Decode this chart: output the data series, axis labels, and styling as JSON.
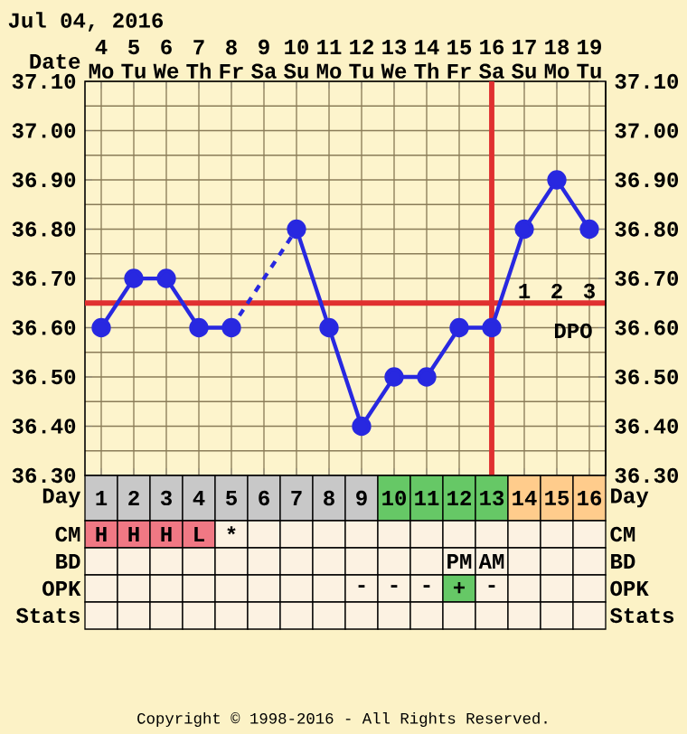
{
  "chart_data": {
    "type": "line",
    "title": "Jul 04, 2016",
    "xlabel": "Date",
    "categories": [
      "4 Mo",
      "5 Tu",
      "6 We",
      "7 Th",
      "8 Fr",
      "9 Sa",
      "10 Su",
      "11 Mo",
      "12 Tu",
      "13 We",
      "14 Th",
      "15 Fr",
      "16 Sa",
      "17 Su",
      "18 Mo",
      "19 Tu"
    ],
    "series": [
      {
        "color": "#2828e0",
        "values": [
          36.6,
          36.7,
          36.7,
          36.6,
          36.6,
          null,
          36.8,
          36.6,
          36.4,
          36.5,
          36.5,
          36.6,
          36.6,
          36.8,
          36.9,
          36.8
        ]
      }
    ],
    "marker": "circle",
    "grid": true,
    "ylim": [
      36.3,
      37.1
    ],
    "yticks": [
      {
        "value": 36.3,
        "label": "36.30"
      },
      {
        "value": 36.4,
        "label": "36.40"
      },
      {
        "value": 36.5,
        "label": "36.50"
      },
      {
        "value": 36.6,
        "label": "36.60"
      },
      {
        "value": 36.7,
        "label": "36.70"
      },
      {
        "value": 36.8,
        "label": "36.80"
      },
      {
        "value": 36.9,
        "label": "36.90"
      },
      {
        "value": 37.0,
        "label": "37.00"
      },
      {
        "value": 37.1,
        "label": "37.10"
      }
    ],
    "y2lim": [
      36.3,
      37.1
    ],
    "y2ticks": [
      {
        "value": 36.3,
        "label": "36.30"
      },
      {
        "value": 36.4,
        "label": "36.40"
      },
      {
        "value": 36.5,
        "label": "36.50"
      },
      {
        "value": 36.6,
        "label": "36.60"
      },
      {
        "value": 36.7,
        "label": "36.70"
      },
      {
        "value": 36.8,
        "label": "36.80"
      },
      {
        "value": 36.9,
        "label": "36.90"
      },
      {
        "value": 37.0,
        "label": "37.00"
      },
      {
        "value": 37.1,
        "label": "37.10"
      }
    ],
    "ref_lines": [
      {
        "axis": "y",
        "value": 36.65,
        "color": "#e03030"
      },
      {
        "axis": "x",
        "value": "16 Sa",
        "color": "#e03030"
      }
    ],
    "annotations": [
      "Day",
      "CM",
      "BD",
      "OPK",
      "Stats",
      "1",
      "2",
      "3",
      "4",
      "5",
      "6",
      "7",
      "8",
      "9",
      "10",
      "11",
      "12",
      "13",
      "14",
      "15",
      "16",
      "H",
      "H",
      "H",
      "L",
      "*",
      "PM",
      "AM",
      "-",
      "-",
      "-",
      "+",
      "-",
      "1",
      "2",
      "3",
      "DPO",
      "Copyright © 1998-2016 - All Rights Reserved."
    ]
  }
}
